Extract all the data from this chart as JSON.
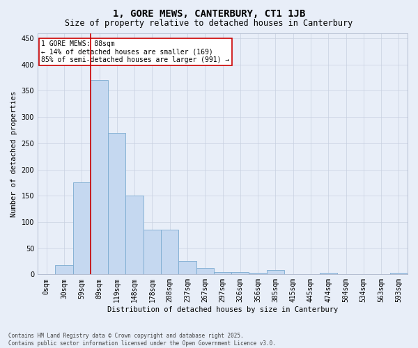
{
  "title": "1, GORE MEWS, CANTERBURY, CT1 1JB",
  "subtitle": "Size of property relative to detached houses in Canterbury",
  "xlabel": "Distribution of detached houses by size in Canterbury",
  "ylabel": "Number of detached properties",
  "categories": [
    "0sqm",
    "30sqm",
    "59sqm",
    "89sqm",
    "119sqm",
    "148sqm",
    "178sqm",
    "208sqm",
    "237sqm",
    "267sqm",
    "297sqm",
    "326sqm",
    "356sqm",
    "385sqm",
    "415sqm",
    "445sqm",
    "474sqm",
    "504sqm",
    "534sqm",
    "563sqm",
    "593sqm"
  ],
  "values": [
    0,
    18,
    175,
    370,
    270,
    150,
    85,
    85,
    25,
    12,
    5,
    5,
    3,
    8,
    0,
    0,
    3,
    0,
    0,
    0,
    3
  ],
  "bar_color": "#c5d8f0",
  "bar_edge_color": "#7aaad0",
  "vline_x_index": 3,
  "vline_color": "#cc0000",
  "annotation_text": "1 GORE MEWS: 88sqm\n← 14% of detached houses are smaller (169)\n85% of semi-detached houses are larger (991) →",
  "annotation_box_facecolor": "#ffffff",
  "annotation_box_edgecolor": "#cc0000",
  "ylim": [
    0,
    460
  ],
  "yticks": [
    0,
    50,
    100,
    150,
    200,
    250,
    300,
    350,
    400,
    450
  ],
  "background_color": "#e8eef8",
  "plot_background_color": "#e8eef8",
  "grid_color": "#c8d0e0",
  "footnote": "Contains HM Land Registry data © Crown copyright and database right 2025.\nContains public sector information licensed under the Open Government Licence v3.0.",
  "title_fontsize": 10,
  "subtitle_fontsize": 8.5,
  "xlabel_fontsize": 7.5,
  "ylabel_fontsize": 7.5,
  "tick_fontsize": 7,
  "annot_fontsize": 7
}
